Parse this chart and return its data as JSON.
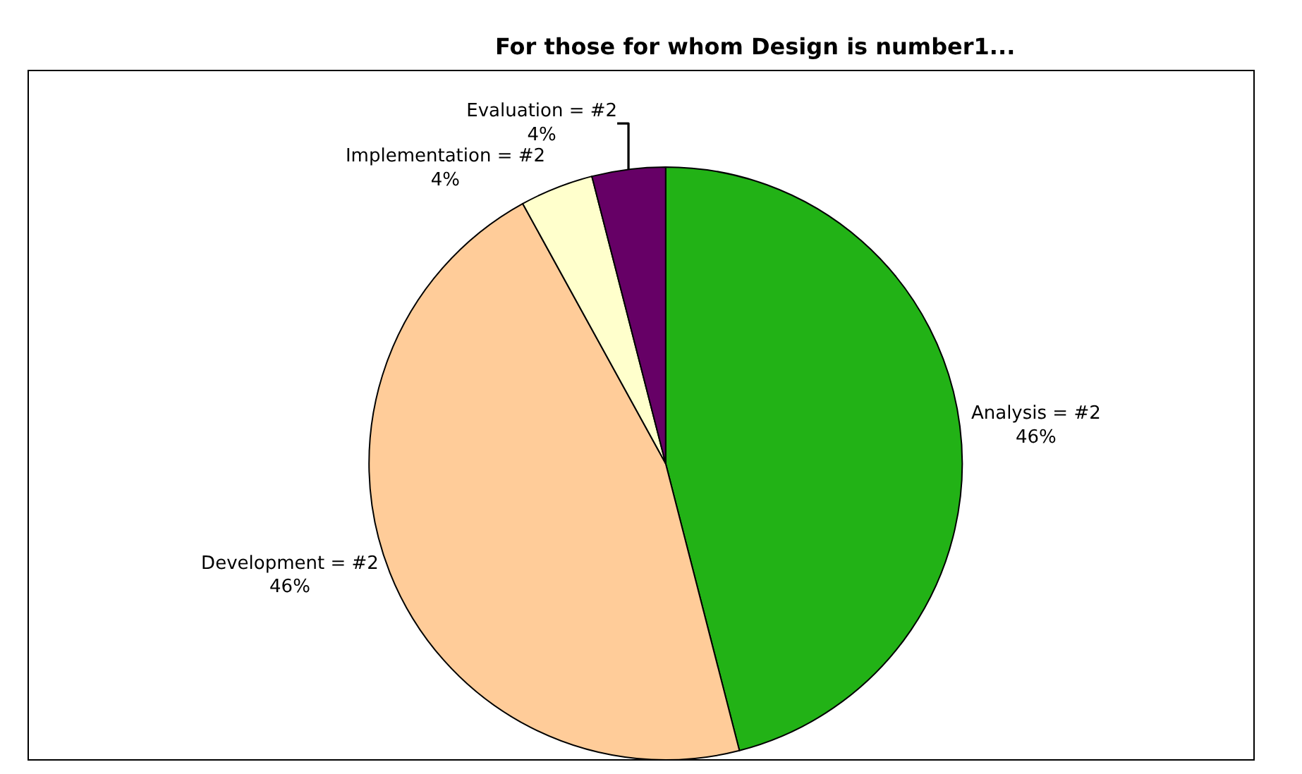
{
  "chart_data": {
    "type": "pie",
    "title": "For those for whom Design is number1...",
    "categories": [
      "Analysis = #2",
      "Development = #2",
      "Implementation = #2",
      "Evaluation = #2"
    ],
    "values": [
      46,
      46,
      4,
      4
    ],
    "value_labels": [
      "46%",
      "46%",
      "4%",
      "4%"
    ],
    "colors": [
      "#22b216",
      "#ffcc99",
      "#ffffcc",
      "#660066"
    ],
    "legend": false
  }
}
